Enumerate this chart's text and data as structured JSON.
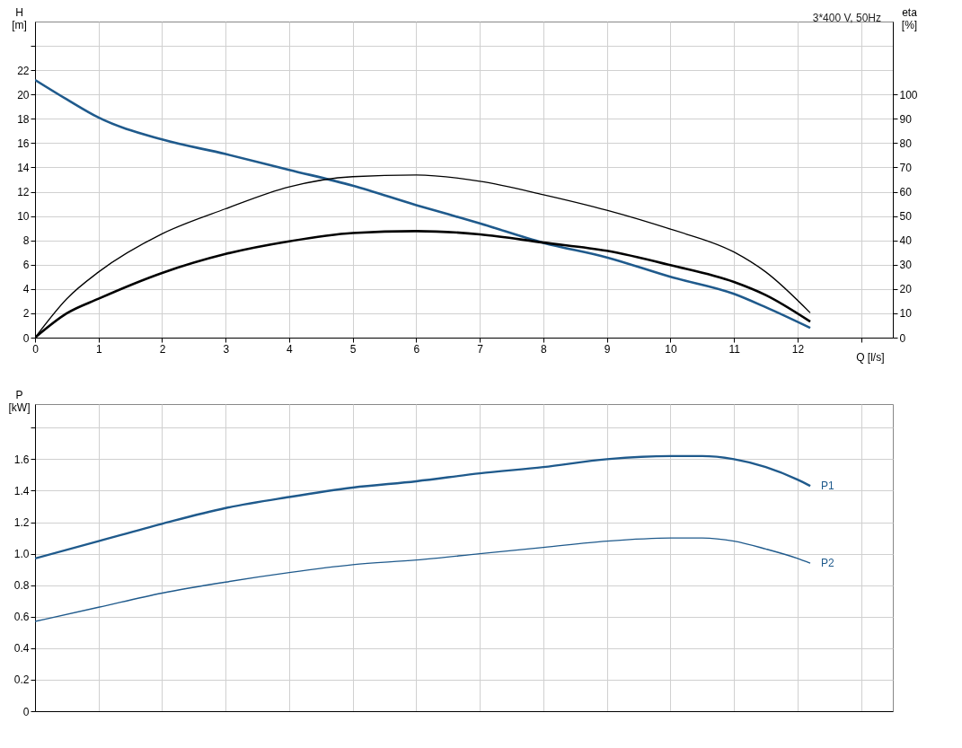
{
  "chart_data": [
    {
      "type": "line",
      "title": "3*400 V, 50Hz",
      "xlabel": "Q [l/s]",
      "ylabel": "H [m]",
      "y2label": "eta [%]",
      "grid": true,
      "xlim": [
        0,
        13.5
      ],
      "xticks": [
        0,
        1,
        2,
        3,
        4,
        5,
        6,
        7,
        8,
        9,
        10,
        11,
        12,
        {
          "value": 13,
          "label": null
        }
      ],
      "ylim": [
        0,
        26
      ],
      "yticks": [
        0,
        2,
        4,
        6,
        8,
        10,
        12,
        14,
        16,
        18,
        20,
        22,
        {
          "value": 24,
          "label": null
        }
      ],
      "y2lim": [
        0,
        130
      ],
      "y2ticks": [
        0,
        10,
        20,
        30,
        40,
        50,
        60,
        70,
        80,
        90,
        100
      ],
      "x": [
        0,
        0.5,
        1,
        2,
        3,
        4,
        5,
        6,
        7,
        8,
        9,
        10,
        11,
        11.5,
        12.2
      ],
      "series": [
        {
          "color": "#1f5a8c",
          "values": [
            21.2,
            19.6,
            18.1,
            16.3,
            15.1,
            13.8,
            12.5,
            10.9,
            9.4,
            7.8,
            6.6,
            5.0,
            3.6,
            2.5,
            0.8
          ]
        },
        {
          "color": "#000000",
          "axis": "y2",
          "values": [
            0,
            16,
            27,
            42.7,
            53,
            62,
            66.2,
            66.9,
            64.3,
            58.8,
            52.4,
            44.6,
            35.2,
            27,
            10.2
          ]
        },
        {
          "color": "#000000",
          "axis": "y2",
          "values": [
            0,
            10,
            16,
            26.6,
            34.4,
            39.6,
            43,
            43.8,
            42.5,
            39.1,
            35.7,
            29.8,
            22.9,
            17.5,
            6.6
          ]
        }
      ]
    },
    {
      "type": "line",
      "ylabel": "P [kW]",
      "grid": true,
      "tick_labels": "y",
      "xlim": [
        0,
        13.5
      ],
      "xticks": [
        0,
        1,
        2,
        3,
        4,
        5,
        6,
        7,
        8,
        9,
        10,
        11,
        12,
        13
      ],
      "ylim": [
        0,
        1.95
      ],
      "yticks": [
        0,
        0.2,
        0.4,
        0.6,
        0.8,
        {
          "value": 1,
          "label": "1.0"
        },
        1.2,
        1.4,
        1.6,
        {
          "value": 1.8,
          "label": null
        }
      ],
      "x": [
        0,
        1,
        2,
        3,
        4,
        5,
        6,
        7,
        8,
        9,
        10,
        10.5,
        11,
        11.5,
        12,
        12.2
      ],
      "series": [
        {
          "name": "P1",
          "color": "#1f5a8c",
          "values": [
            0.97,
            1.08,
            1.19,
            1.29,
            1.36,
            1.42,
            1.46,
            1.51,
            1.55,
            1.6,
            1.62,
            1.62,
            1.6,
            1.55,
            1.47,
            1.43
          ]
        },
        {
          "name": "P2",
          "color": "#1f5a8c",
          "values": [
            0.57,
            0.66,
            0.75,
            0.82,
            0.88,
            0.93,
            0.96,
            1.0,
            1.04,
            1.08,
            1.1,
            1.1,
            1.08,
            1.03,
            0.97,
            0.94
          ]
        }
      ]
    }
  ]
}
